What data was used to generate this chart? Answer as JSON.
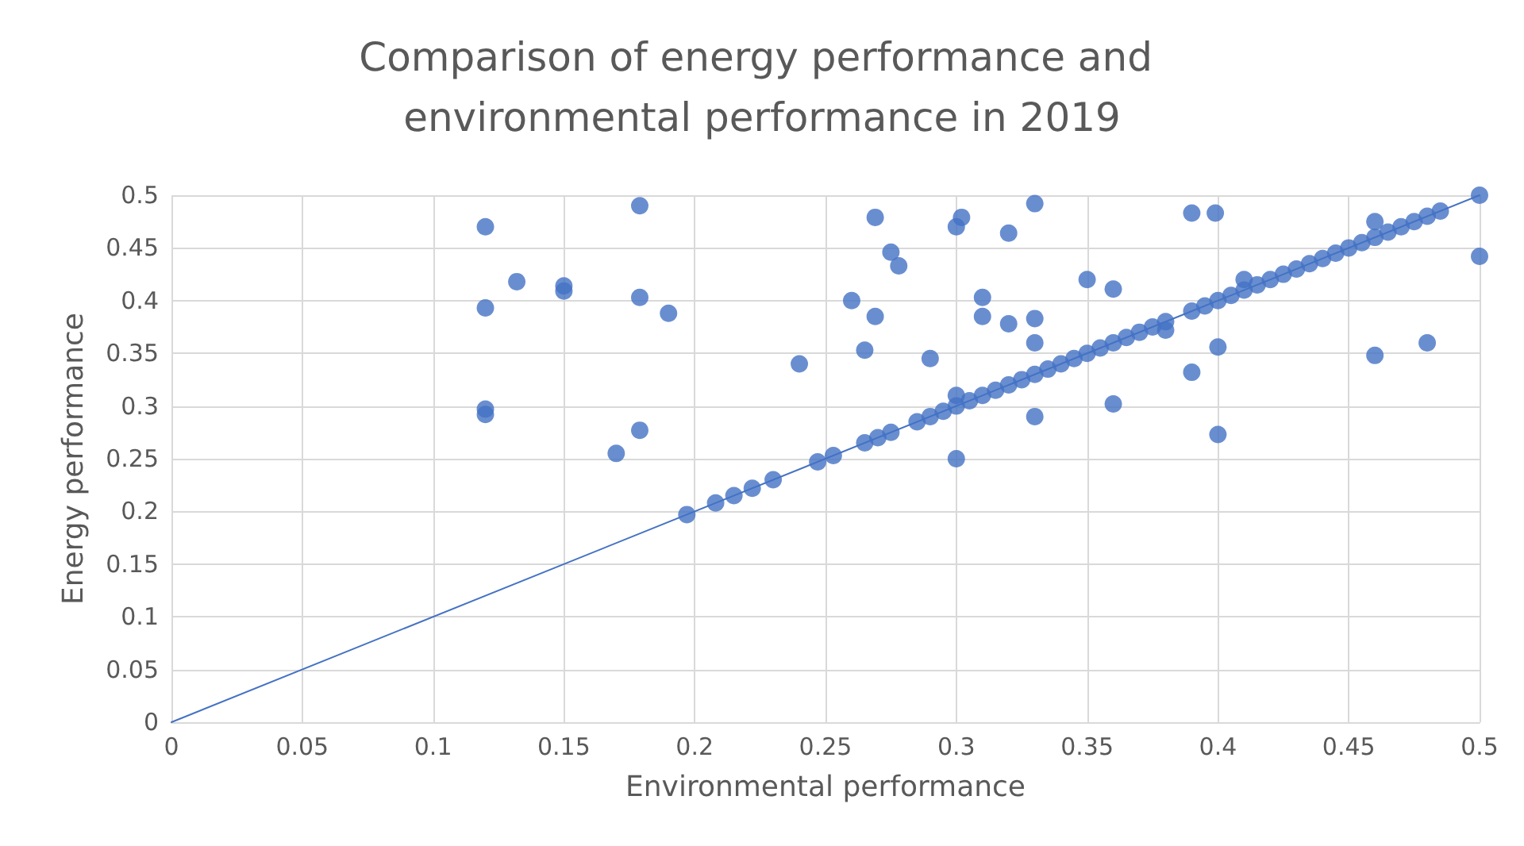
{
  "chart_data": {
    "type": "scatter",
    "title": "Comparison of energy performance and environmental performance in 2019",
    "xlabel": "Environmental performance",
    "ylabel": "Energy performance",
    "xlim": [
      0,
      0.5
    ],
    "ylim": [
      0,
      0.5
    ],
    "xticks": [
      0,
      0.05,
      0.1,
      0.15,
      0.2,
      0.25,
      0.3,
      0.35,
      0.4,
      0.45,
      0.5
    ],
    "yticks": [
      0,
      0.05,
      0.1,
      0.15,
      0.2,
      0.25,
      0.3,
      0.35,
      0.4,
      0.45,
      0.5
    ],
    "grid": true,
    "series": [
      {
        "color": "#4472c4",
        "marker": "circle",
        "x": [
          0.12,
          0.12,
          0.12,
          0.12,
          0.132,
          0.15,
          0.15,
          0.179,
          0.179,
          0.179,
          0.17,
          0.19,
          0.24,
          0.26,
          0.265,
          0.269,
          0.269,
          0.275,
          0.278,
          0.29,
          0.3,
          0.302,
          0.3,
          0.31,
          0.31,
          0.32,
          0.32,
          0.33,
          0.33,
          0.33,
          0.33,
          0.35,
          0.36,
          0.36,
          0.39,
          0.399,
          0.39,
          0.4,
          0.4,
          0.46,
          0.48,
          0.5,
          0.5,
          0.38,
          0.46,
          0.41,
          0.3,
          0.197,
          0.208,
          0.215,
          0.222,
          0.23,
          0.247,
          0.253,
          0.265,
          0.27,
          0.275,
          0.285,
          0.29,
          0.295,
          0.3,
          0.305,
          0.31,
          0.315,
          0.32,
          0.325,
          0.33,
          0.335,
          0.34,
          0.345,
          0.35,
          0.355,
          0.36,
          0.365,
          0.37,
          0.375,
          0.38,
          0.39,
          0.395,
          0.4,
          0.405,
          0.41,
          0.415,
          0.42,
          0.425,
          0.43,
          0.435,
          0.44,
          0.445,
          0.45,
          0.455,
          0.46,
          0.465,
          0.47,
          0.475,
          0.48,
          0.485
        ],
        "values": [
          0.47,
          0.393,
          0.297,
          0.292,
          0.418,
          0.414,
          0.409,
          0.49,
          0.403,
          0.277,
          0.255,
          0.388,
          0.34,
          0.4,
          0.353,
          0.479,
          0.385,
          0.446,
          0.433,
          0.345,
          0.47,
          0.479,
          0.25,
          0.403,
          0.385,
          0.464,
          0.378,
          0.492,
          0.383,
          0.36,
          0.29,
          0.42,
          0.411,
          0.302,
          0.483,
          0.483,
          0.332,
          0.356,
          0.273,
          0.348,
          0.36,
          0.442,
          0.5,
          0.372,
          0.475,
          0.42,
          0.31,
          0.197,
          0.208,
          0.215,
          0.222,
          0.23,
          0.247,
          0.253,
          0.265,
          0.27,
          0.275,
          0.285,
          0.29,
          0.295,
          0.3,
          0.305,
          0.31,
          0.315,
          0.32,
          0.325,
          0.33,
          0.335,
          0.34,
          0.345,
          0.35,
          0.355,
          0.36,
          0.365,
          0.37,
          0.375,
          0.38,
          0.39,
          0.395,
          0.4,
          0.405,
          0.41,
          0.415,
          0.42,
          0.425,
          0.43,
          0.435,
          0.44,
          0.445,
          0.45,
          0.455,
          0.46,
          0.465,
          0.47,
          0.475,
          0.48,
          0.485
        ]
      },
      {
        "type": "line",
        "color": "#4472c4",
        "marker": "none",
        "line_style": "solid",
        "x": [
          0,
          0.5
        ],
        "values": [
          0,
          0.5
        ]
      }
    ]
  }
}
